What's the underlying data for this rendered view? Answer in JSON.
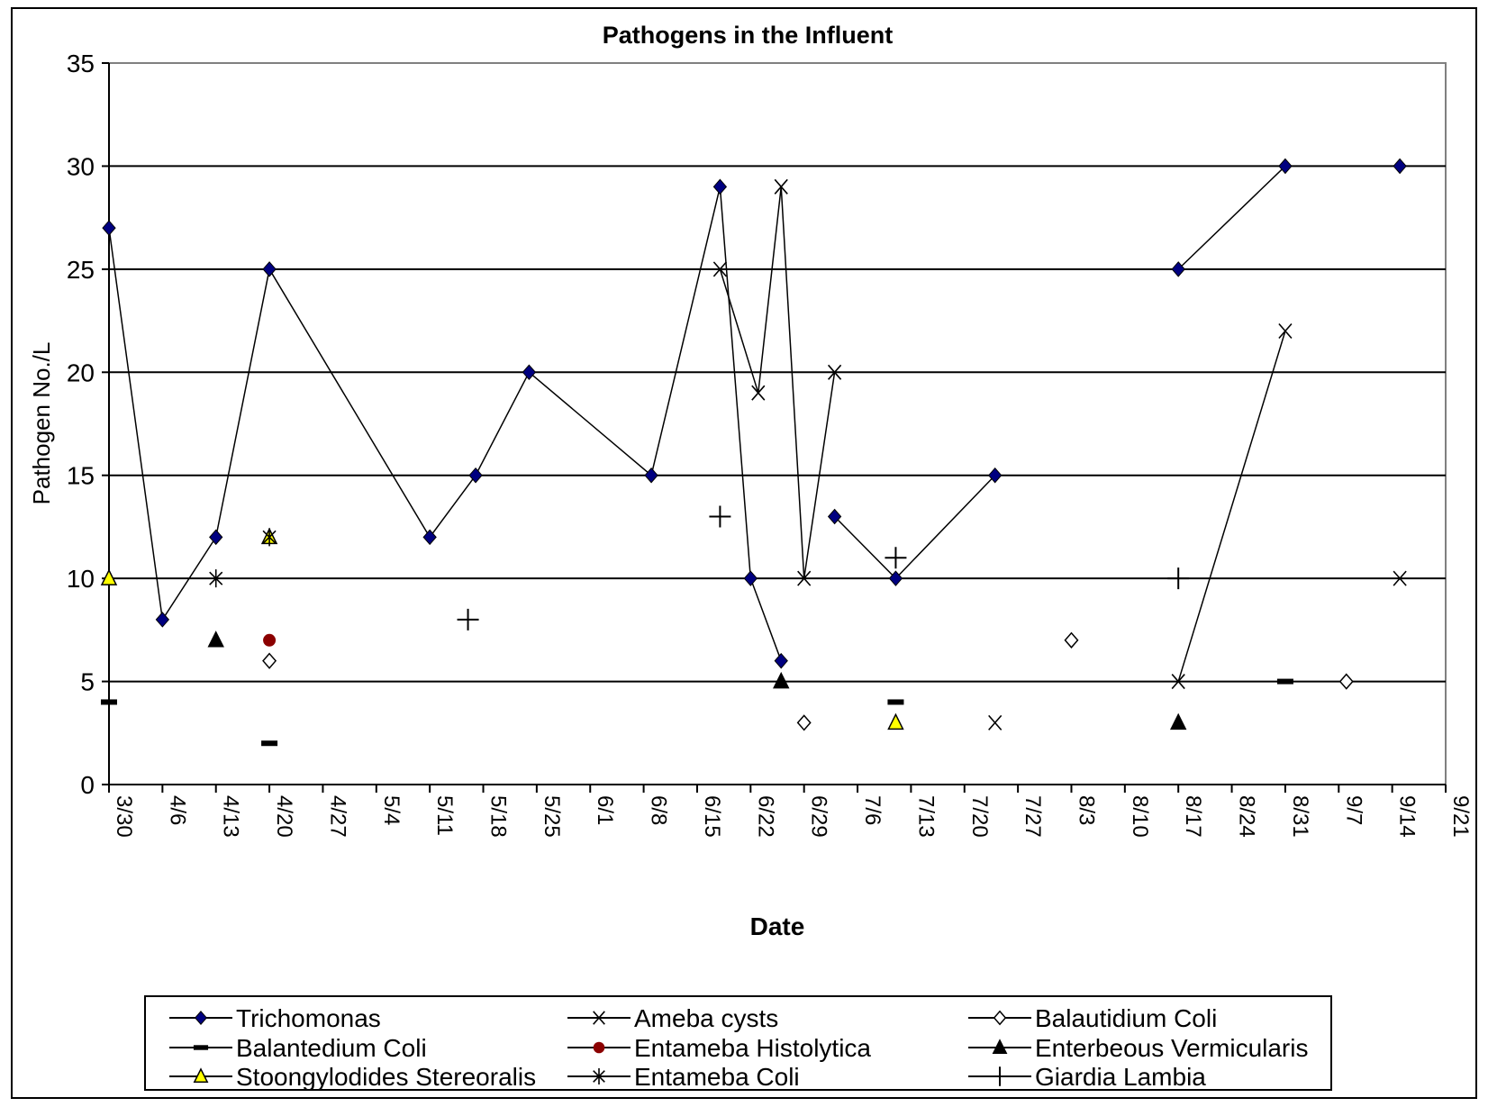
{
  "chart_data": {
    "type": "line",
    "title": "Pathogens in the Influent",
    "xlabel": "Date",
    "ylabel": "Pathogen No./L",
    "ylim": [
      0,
      35
    ],
    "yticks": [
      0,
      5,
      10,
      15,
      20,
      25,
      30,
      35
    ],
    "x_axis_start": "2004-03-30",
    "x_tick_step_days": 7,
    "x_ticks": [
      "3/30",
      "4/6",
      "4/13",
      "4/20",
      "4/27",
      "5/4",
      "5/11",
      "5/18",
      "5/25",
      "6/1",
      "6/8",
      "6/15",
      "6/22",
      "6/29",
      "7/6",
      "7/13",
      "7/20",
      "7/27",
      "8/3",
      "8/10",
      "8/17",
      "8/24",
      "8/31",
      "9/7",
      "9/14",
      "9/21"
    ],
    "grid": {
      "horizontal": true,
      "vertical": false
    },
    "legend_position": "bottom",
    "series": [
      {
        "name": "Trichomonas",
        "color": "#000080",
        "marker": "diamond-filled",
        "line": true,
        "segments": [
          [
            [
              0,
              27
            ],
            [
              7,
              8
            ],
            [
              14,
              12
            ],
            [
              21,
              25
            ],
            [
              42,
              12
            ],
            [
              48,
              15
            ],
            [
              55,
              20
            ],
            [
              71,
              15
            ],
            [
              80,
              29
            ],
            [
              84,
              10
            ],
            [
              88,
              6
            ]
          ],
          [
            [
              95,
              13
            ],
            [
              103,
              10
            ],
            [
              116,
              15
            ]
          ],
          [
            [
              140,
              25
            ],
            [
              154,
              30
            ],
            [
              169,
              30
            ]
          ]
        ]
      },
      {
        "name": "Balantedium Coli",
        "color": "#000000",
        "marker": "dash",
        "line": false,
        "points": [
          [
            0,
            4
          ],
          [
            21,
            2
          ],
          [
            103,
            4
          ],
          [
            154,
            5
          ]
        ]
      },
      {
        "name": "Stoongylodides Stereoralis",
        "color": "#ffff00",
        "marker": "triangle-filled",
        "line": false,
        "points": [
          [
            0,
            10
          ],
          [
            21,
            12
          ],
          [
            103,
            3
          ]
        ]
      },
      {
        "name": "Ameba cysts",
        "color": "#000000",
        "marker": "x",
        "line": true,
        "segments": [
          [
            [
              80,
              25
            ],
            [
              85,
              19
            ],
            [
              88,
              29
            ],
            [
              91,
              10
            ],
            [
              95,
              20
            ]
          ],
          [
            [
              116,
              3
            ]
          ],
          [
            [
              140,
              5
            ],
            [
              154,
              22
            ]
          ],
          [
            [
              169,
              10
            ]
          ]
        ]
      },
      {
        "name": "Entameba Histolytica",
        "color": "#8b0000",
        "marker": "circle-filled",
        "line": false,
        "points": [
          [
            21,
            7
          ]
        ]
      },
      {
        "name": "Entameba Coli",
        "color": "#000000",
        "marker": "asterisk",
        "line": false,
        "points": [
          [
            14,
            10
          ],
          [
            21,
            12
          ]
        ]
      },
      {
        "name": "Balautidium Coli",
        "color": "#000000",
        "marker": "diamond-open",
        "line": false,
        "points": [
          [
            21,
            6
          ],
          [
            91,
            3
          ],
          [
            126,
            7
          ],
          [
            162,
            5
          ]
        ]
      },
      {
        "name": "Enterbeous Vermicularis",
        "color": "#000000",
        "marker": "triangle-filled",
        "line": false,
        "points": [
          [
            14,
            7
          ],
          [
            88,
            5
          ],
          [
            140,
            3
          ]
        ]
      },
      {
        "name": "Giardia Lambia",
        "color": "#000000",
        "marker": "plus",
        "line": false,
        "points": [
          [
            47,
            8
          ],
          [
            80,
            13
          ],
          [
            103,
            11
          ],
          [
            140,
            10
          ]
        ]
      }
    ]
  }
}
